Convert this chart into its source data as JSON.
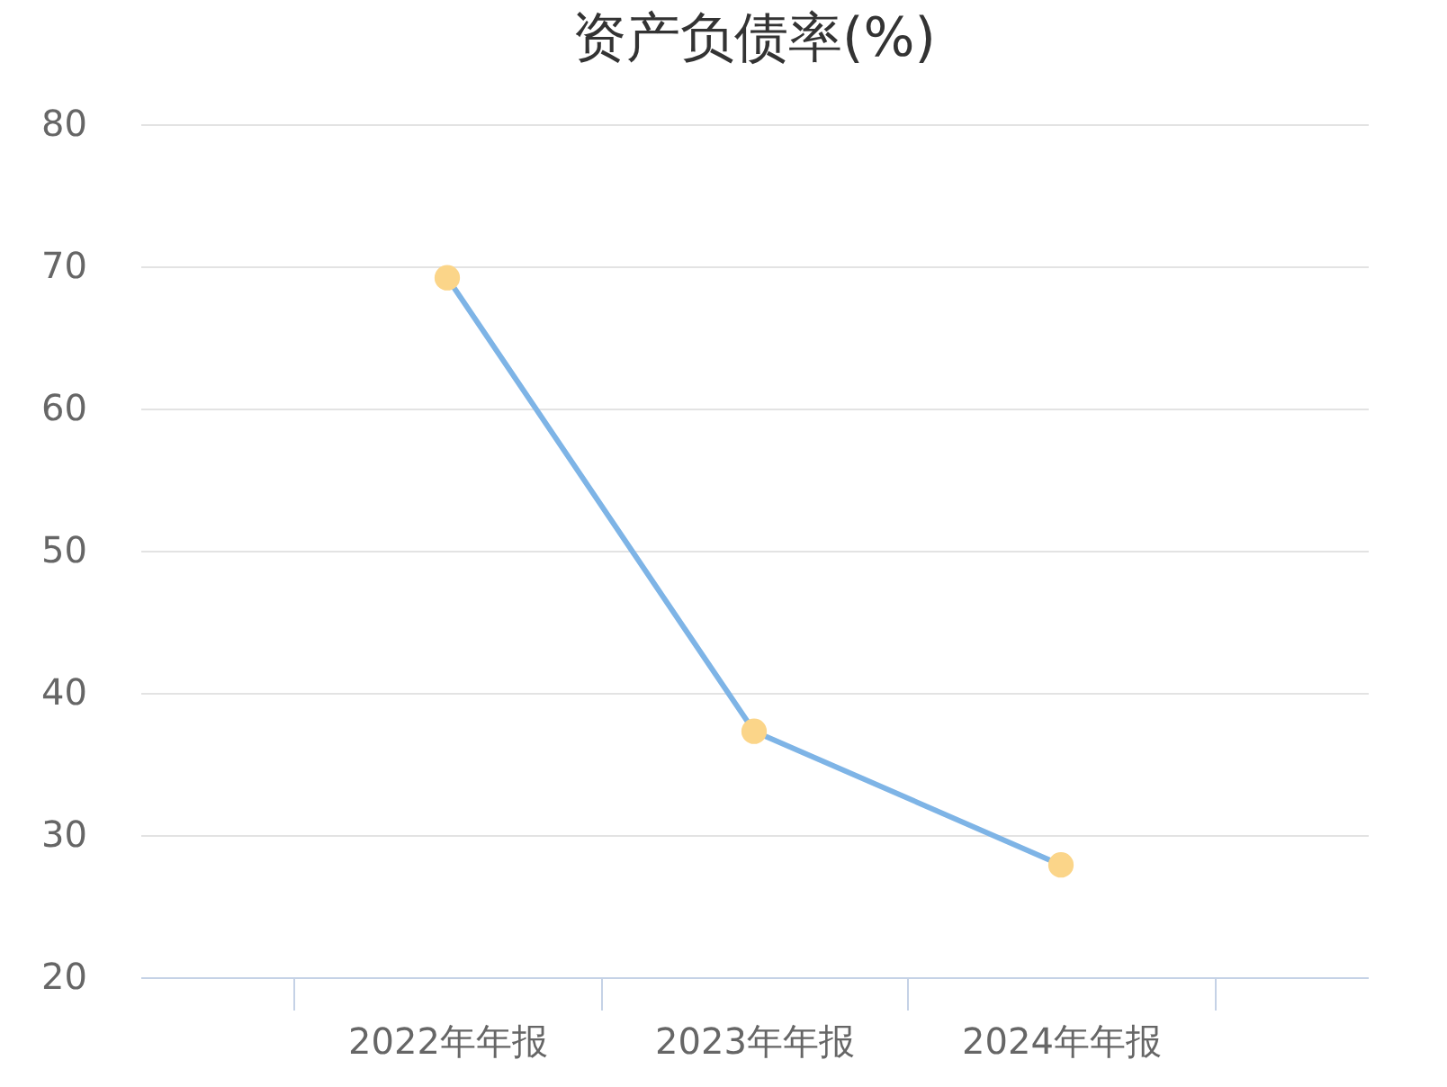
{
  "chart_data": {
    "type": "line",
    "title": "资产负债率(%)",
    "categories": [
      "2022年年报",
      "2023年年报",
      "2024年年报"
    ],
    "series": [
      {
        "color": "#7eb4e6",
        "values": [
          69.2,
          37.3,
          27.9
        ]
      }
    ],
    "ylim": [
      20,
      80
    ],
    "yticks": [
      20,
      30,
      40,
      50,
      60,
      70,
      80
    ],
    "grid": "y",
    "marker": "circle",
    "line_style": "solid",
    "legend": false
  }
}
